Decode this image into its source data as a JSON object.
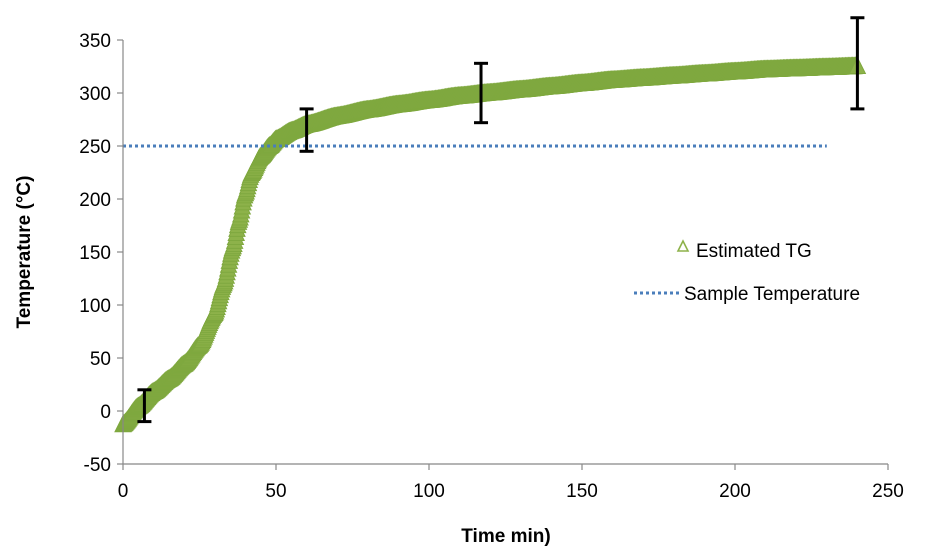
{
  "chart_data": {
    "type": "scatter",
    "xlabel": "Time  min)",
    "ylabel": "Temperature (°C)",
    "xlim": [
      0,
      250
    ],
    "ylim": [
      -50,
      350
    ],
    "xticks": [
      "0",
      "50",
      "100",
      "150",
      "200",
      "250"
    ],
    "yticks": [
      "-50",
      "0",
      "50",
      "100",
      "150",
      "200",
      "250",
      "300",
      "350"
    ],
    "legend_position": "right",
    "grid": false,
    "series": [
      {
        "name": "Estimated TG",
        "type": "scatter",
        "marker": "triangle-open",
        "color": "#8db24a",
        "x": [
          0,
          5,
          10,
          15,
          20,
          25,
          30,
          33,
          36,
          38,
          40,
          42,
          45,
          48,
          50,
          55,
          60,
          70,
          80,
          90,
          100,
          110,
          120,
          130,
          140,
          150,
          160,
          170,
          180,
          190,
          200,
          210,
          220,
          230,
          240
        ],
        "y": [
          -13,
          4,
          18,
          30,
          44,
          62,
          92,
          120,
          155,
          180,
          205,
          224,
          240,
          250,
          256,
          264,
          270,
          278,
          284,
          289,
          293,
          297,
          300,
          303,
          306,
          309,
          312,
          314,
          316,
          318,
          320,
          322,
          323,
          324,
          325
        ]
      },
      {
        "name": "Sample Temperature",
        "type": "line",
        "style": "dotted",
        "color": "#4a7ebb",
        "x": [
          0,
          230
        ],
        "y": [
          250,
          250
        ]
      }
    ],
    "error_bars": {
      "color": "#000000",
      "points": [
        {
          "x": 7,
          "y": 5,
          "low": -10,
          "high": 20
        },
        {
          "x": 60,
          "y": 265,
          "low": 245,
          "high": 285
        },
        {
          "x": 117,
          "y": 300,
          "low": 272,
          "high": 328
        },
        {
          "x": 240,
          "y": 328,
          "low": 285,
          "high": 371
        }
      ]
    }
  }
}
